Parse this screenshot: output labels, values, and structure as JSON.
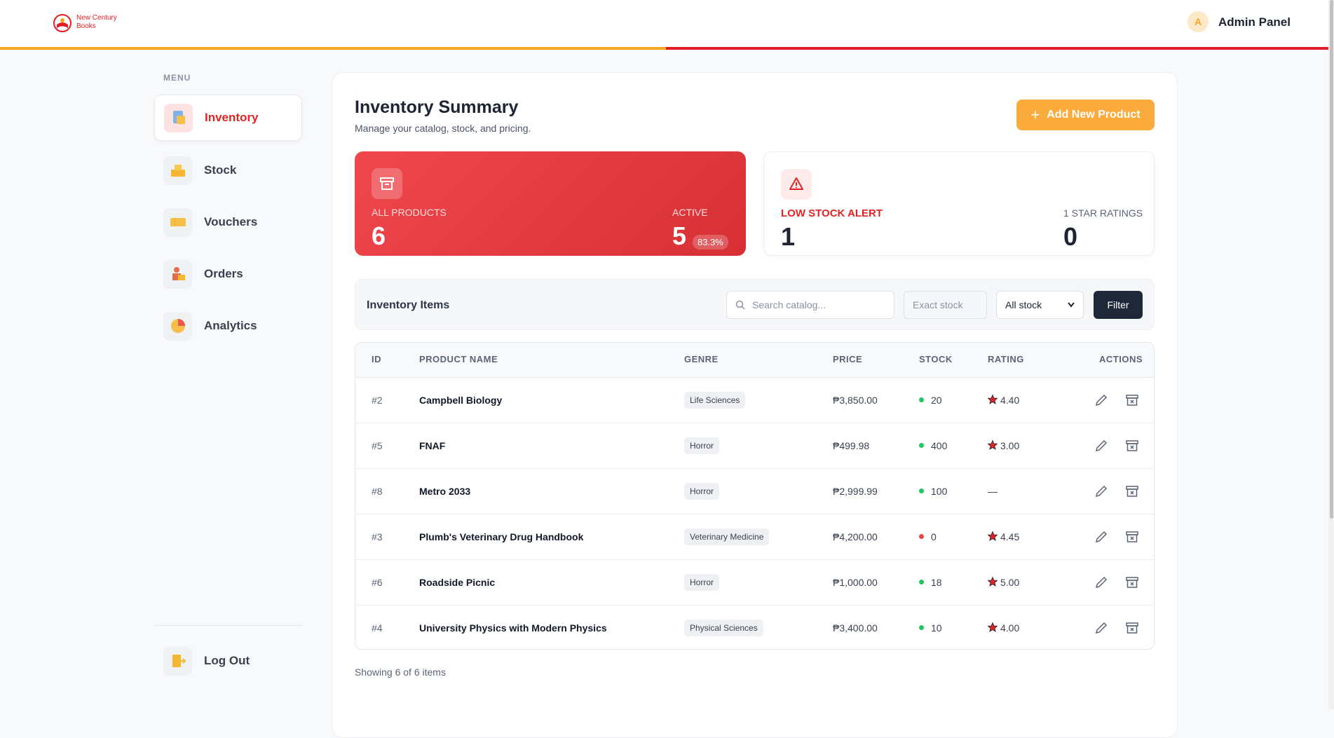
{
  "header": {
    "brand": "New Century Books",
    "avatar": "A",
    "title": "Admin Panel"
  },
  "sidebar": {
    "menu_label": "MENU",
    "items": [
      "Inventory",
      "Stock",
      "Vouchers",
      "Orders",
      "Analytics"
    ],
    "logout": "Log Out"
  },
  "page": {
    "title": "Inventory Summary",
    "subtitle": "Manage your catalog, stock, and pricing.",
    "add_button": "Add New Product"
  },
  "stats": {
    "all_products_label": "ALL PRODUCTS",
    "all_products": 6,
    "active_label": "ACTIVE",
    "active": 5,
    "active_pct": "83.3%",
    "low_stock_label": "LOW STOCK ALERT",
    "low_stock": 1,
    "one_star_label": "1 STAR RATINGS",
    "one_star": 0
  },
  "table": {
    "title": "Inventory Items",
    "search_placeholder": "Search catalog...",
    "exact_placeholder": "Exact stock",
    "stock_filter": "All stock",
    "filter_button": "Filter",
    "columns": [
      "ID",
      "PRODUCT NAME",
      "GENRE",
      "PRICE",
      "STOCK",
      "RATING",
      "ACTIONS"
    ],
    "rows": [
      [
        "#2",
        "Campbell Biology",
        "Life Sciences",
        "₱3,850.00",
        20,
        "4.40"
      ],
      [
        "#5",
        "FNAF",
        "Horror",
        "₱499.98",
        400,
        "3.00"
      ],
      [
        "#8",
        "Metro 2033",
        "Horror",
        "₱2,999.99",
        100,
        "—"
      ],
      [
        "#3",
        "Plumb's Veterinary Drug Handbook",
        "Veterinary Medicine",
        "₱4,200.00",
        0,
        "4.45"
      ],
      [
        "#6",
        "Roadside Picnic",
        "Horror",
        "₱1,000.00",
        18,
        "5.00"
      ],
      [
        "#4",
        "University Physics with Modern Physics",
        "Physical Sciences",
        "₱3,400.00",
        10,
        "4.00"
      ]
    ],
    "footer": "Showing 6 of 6 items"
  }
}
